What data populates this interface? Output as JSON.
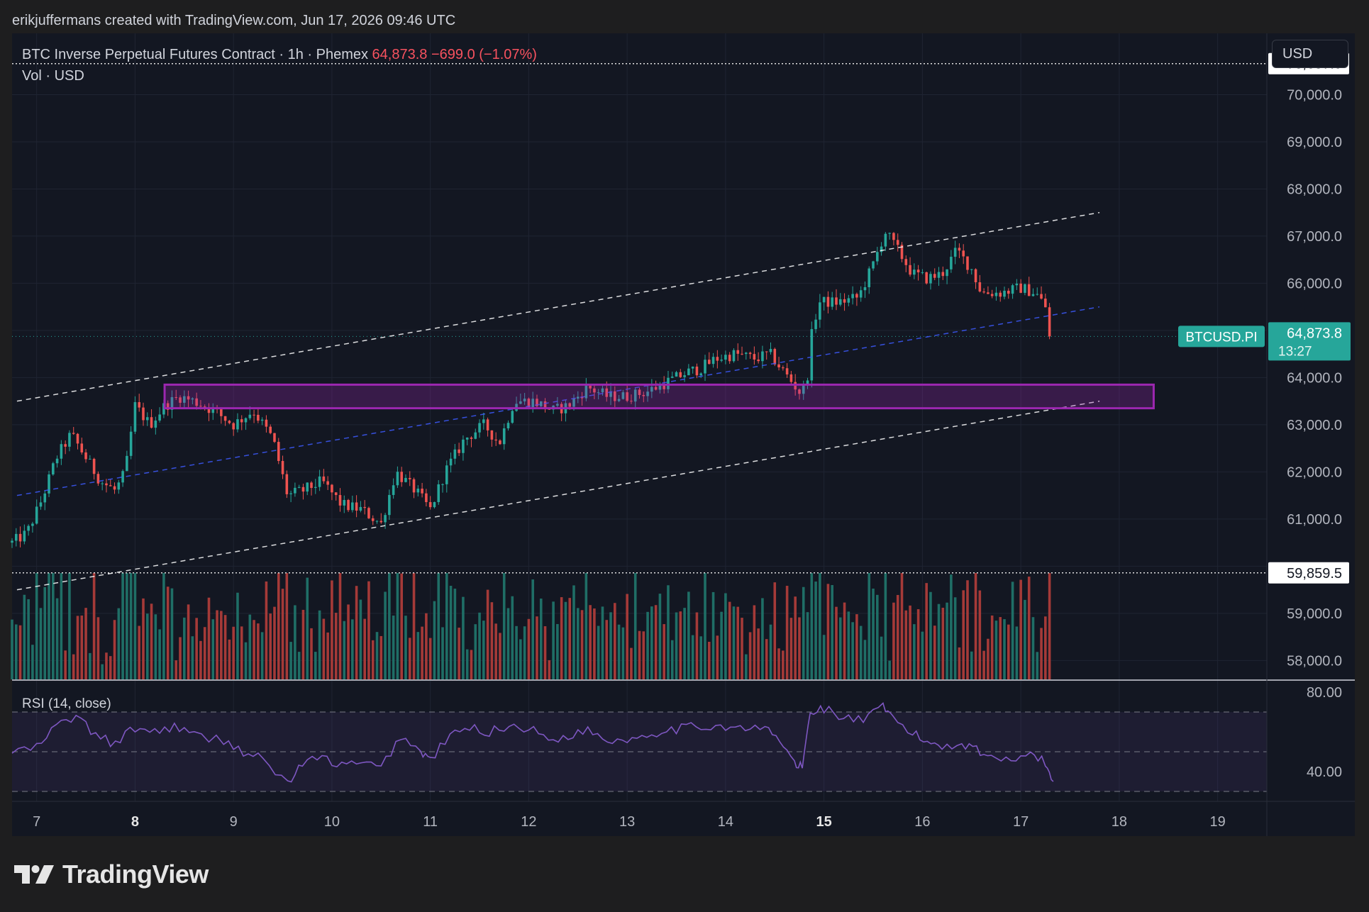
{
  "header": {
    "credit": "erikjuffermans created with TradingView.com, Jun 17, 2026 09:46 UTC"
  },
  "legend": {
    "symbol": "BTC Inverse Perpetual Futures Contract · 1h · Phemex",
    "last": "64,873.8",
    "change": "−699.0 (−1.07%)",
    "volume": "Vol · USD"
  },
  "currency_button": "USD",
  "price_tags": {
    "high_line": "70,657.9",
    "low_line": "59,859.5",
    "symbol_tag": "BTCUSD.PI",
    "last_price": "64,873.8",
    "countdown": "13:27"
  },
  "rsi_label": "RSI (14, close)",
  "brand": "TradingView",
  "colors": {
    "background": "#131722",
    "up": "#26a69a",
    "down": "#ef5350",
    "up_volume": "#1f6e66",
    "down_volume": "#a53a38",
    "box": "#9c27b0",
    "rsi": "#7e57c2",
    "channel_outer": "#ffffff",
    "channel_mid": "#3d5afe"
  },
  "chart_data": {
    "type": "candlestick",
    "symbol": "BTCUSD.PI",
    "timeframe": "1h",
    "price_axis": {
      "ticks": [
        58000,
        59000,
        60000,
        61000,
        62000,
        63000,
        64000,
        65000,
        66000,
        67000,
        68000,
        69000,
        70000
      ],
      "labels": [
        "58,000.0",
        "59,000.0",
        "",
        "61,000.0",
        "62,000.0",
        "63,000.0",
        "64,000.0",
        "",
        "66,000.0",
        "67,000.0",
        "68,000.0",
        "69,000.0",
        "70,000.0"
      ],
      "range": [
        57600,
        71300
      ]
    },
    "time_axis": {
      "labels": [
        "7",
        "8",
        "9",
        "10",
        "11",
        "12",
        "13",
        "14",
        "15",
        "16",
        "17",
        "18",
        "19"
      ],
      "bold": [
        "8",
        "15"
      ],
      "range_days": [
        6.75,
        19.5
      ]
    },
    "price_path": [
      [
        6.75,
        60500
      ],
      [
        6.9,
        60700
      ],
      [
        7.05,
        61400
      ],
      [
        7.2,
        62300
      ],
      [
        7.35,
        62800
      ],
      [
        7.5,
        62300
      ],
      [
        7.65,
        61800
      ],
      [
        7.8,
        61600
      ],
      [
        7.9,
        62000
      ],
      [
        8.0,
        63400
      ],
      [
        8.15,
        63000
      ],
      [
        8.3,
        63400
      ],
      [
        8.45,
        63600
      ],
      [
        8.6,
        63500
      ],
      [
        8.8,
        63300
      ],
      [
        9.0,
        63000
      ],
      [
        9.2,
        63300
      ],
      [
        9.4,
        62700
      ],
      [
        9.55,
        61500
      ],
      [
        9.7,
        61600
      ],
      [
        9.9,
        61800
      ],
      [
        10.1,
        61300
      ],
      [
        10.3,
        61200
      ],
      [
        10.5,
        60900
      ],
      [
        10.65,
        62000
      ],
      [
        10.85,
        61600
      ],
      [
        11.0,
        61200
      ],
      [
        11.15,
        62000
      ],
      [
        11.35,
        62700
      ],
      [
        11.55,
        63000
      ],
      [
        11.7,
        62600
      ],
      [
        11.85,
        63500
      ],
      [
        12.05,
        63500
      ],
      [
        12.25,
        63300
      ],
      [
        12.4,
        63400
      ],
      [
        12.6,
        63800
      ],
      [
        12.8,
        63600
      ],
      [
        13.0,
        63600
      ],
      [
        13.2,
        63700
      ],
      [
        13.4,
        63900
      ],
      [
        13.6,
        64100
      ],
      [
        13.75,
        64200
      ],
      [
        13.9,
        64400
      ],
      [
        14.1,
        64500
      ],
      [
        14.3,
        64400
      ],
      [
        14.45,
        64500
      ],
      [
        14.6,
        64100
      ],
      [
        14.75,
        63700
      ],
      [
        14.82,
        63800
      ],
      [
        14.88,
        65000
      ],
      [
        14.95,
        65600
      ],
      [
        15.15,
        65600
      ],
      [
        15.35,
        65700
      ],
      [
        15.5,
        66400
      ],
      [
        15.62,
        67100
      ],
      [
        15.75,
        66700
      ],
      [
        15.9,
        66200
      ],
      [
        16.05,
        66100
      ],
      [
        16.2,
        66200
      ],
      [
        16.35,
        66700
      ],
      [
        16.5,
        66300
      ],
      [
        16.6,
        65800
      ],
      [
        16.8,
        65800
      ],
      [
        17.0,
        65900
      ],
      [
        17.15,
        65800
      ],
      [
        17.25,
        65500
      ],
      [
        17.33,
        64870
      ]
    ],
    "last_price": 64873.8,
    "horizontal_lines": [
      70657.9,
      59859.5
    ],
    "support_box": {
      "day_start": 8.3,
      "day_end": 18.35,
      "price_low": 63350,
      "price_high": 63850
    },
    "channel": {
      "upper": [
        [
          6.8,
          63500
        ],
        [
          17.8,
          67500
        ]
      ],
      "middle": [
        [
          6.8,
          61500
        ],
        [
          17.8,
          65500
        ]
      ],
      "lower": [
        [
          6.8,
          59500
        ],
        [
          17.8,
          63500
        ]
      ]
    },
    "volume": {
      "series": "Vol · USD",
      "colored_by_direction": true
    },
    "rsi": {
      "name": "RSI (14, close)",
      "axis_labels": [
        "80.00",
        "40.00"
      ],
      "levels": [
        70,
        50,
        30
      ],
      "range": [
        25,
        85
      ],
      "path": [
        [
          6.75,
          50
        ],
        [
          7.0,
          52
        ],
        [
          7.2,
          63
        ],
        [
          7.4,
          68
        ],
        [
          7.6,
          58
        ],
        [
          7.8,
          54
        ],
        [
          8.0,
          62
        ],
        [
          8.2,
          60
        ],
        [
          8.4,
          63
        ],
        [
          8.6,
          58
        ],
        [
          8.9,
          56
        ],
        [
          9.1,
          50
        ],
        [
          9.3,
          46
        ],
        [
          9.55,
          34
        ],
        [
          9.7,
          44
        ],
        [
          9.9,
          47
        ],
        [
          10.1,
          43
        ],
        [
          10.3,
          44
        ],
        [
          10.5,
          42
        ],
        [
          10.7,
          58
        ],
        [
          10.9,
          50
        ],
        [
          11.0,
          46
        ],
        [
          11.2,
          58
        ],
        [
          11.4,
          62
        ],
        [
          11.6,
          60
        ],
        [
          11.8,
          63
        ],
        [
          12.0,
          62
        ],
        [
          12.2,
          56
        ],
        [
          12.4,
          58
        ],
        [
          12.6,
          61
        ],
        [
          12.8,
          56
        ],
        [
          13.0,
          56
        ],
        [
          13.2,
          59
        ],
        [
          13.4,
          61
        ],
        [
          13.6,
          62
        ],
        [
          13.8,
          63
        ],
        [
          14.0,
          63
        ],
        [
          14.2,
          61
        ],
        [
          14.4,
          62
        ],
        [
          14.55,
          56
        ],
        [
          14.7,
          44
        ],
        [
          14.78,
          42
        ],
        [
          14.86,
          70
        ],
        [
          15.0,
          72
        ],
        [
          15.2,
          67
        ],
        [
          15.4,
          66
        ],
        [
          15.6,
          72
        ],
        [
          15.7,
          67
        ],
        [
          15.9,
          59
        ],
        [
          16.05,
          55
        ],
        [
          16.2,
          53
        ],
        [
          16.4,
          54
        ],
        [
          16.55,
          52
        ],
        [
          16.7,
          46
        ],
        [
          16.9,
          47
        ],
        [
          17.1,
          50
        ],
        [
          17.25,
          44
        ],
        [
          17.33,
          35
        ]
      ]
    }
  }
}
